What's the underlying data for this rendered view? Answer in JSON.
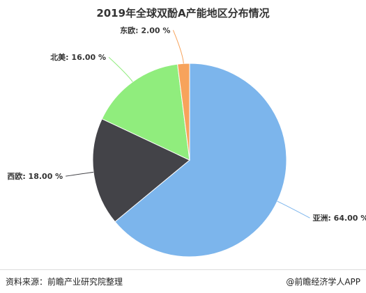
{
  "chart_data": {
    "type": "pie",
    "title": "2019年全球双酚A产能地区分布情况",
    "slices": [
      {
        "label": "亚洲",
        "value": 64.0,
        "display": "亚洲: 64.00 %",
        "color": "#7cb5ec"
      },
      {
        "label": "西欧",
        "value": 18.0,
        "display": "西欧: 18.00 %",
        "color": "#434348"
      },
      {
        "label": "北美",
        "value": 16.0,
        "display": "北美: 16.00 %",
        "color": "#90ed7d"
      },
      {
        "label": "东欧",
        "value": 2.0,
        "display": "东欧: 2.00 %",
        "color": "#f7a35c"
      }
    ]
  },
  "footer": {
    "source": "资料来源：前瞻产业研究院整理",
    "brand": "@前瞻经济学人APP"
  }
}
